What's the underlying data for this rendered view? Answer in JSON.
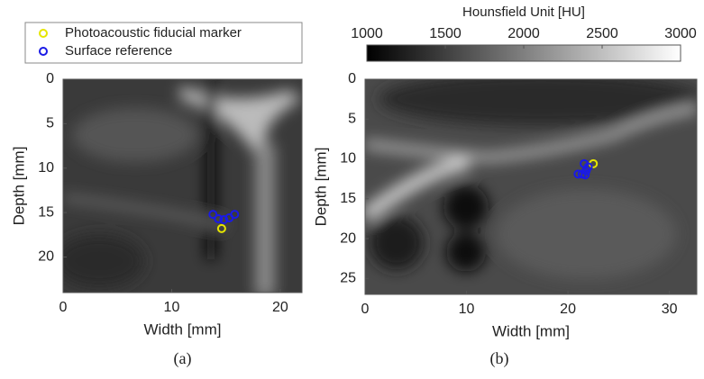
{
  "chart_data": [
    {
      "type": "scatter",
      "caption": "(a)",
      "xlabel": "Width [mm]",
      "ylabel": "Depth [mm]",
      "xlim": [
        0,
        22
      ],
      "ylim": [
        24,
        0
      ],
      "xticks": [
        0,
        10,
        20
      ],
      "yticks": [
        0,
        5,
        10,
        15,
        20
      ],
      "series": [
        {
          "name": "Photoacoustic fiducial marker",
          "color": "#e6e600",
          "x": [
            14.6
          ],
          "values": [
            16.8
          ]
        },
        {
          "name": "Surface reference",
          "color": "#1a1ae6",
          "x": [
            13.8,
            14.3,
            14.8,
            15.3,
            15.8
          ],
          "values": [
            15.2,
            15.7,
            15.8,
            15.6,
            15.2
          ]
        }
      ]
    },
    {
      "type": "scatter",
      "caption": "(b)",
      "xlabel": "Width [mm]",
      "ylabel": "Depth [mm]",
      "xlim": [
        0,
        32.7
      ],
      "ylim": [
        27,
        0
      ],
      "xticks": [
        0,
        10,
        20,
        30
      ],
      "yticks": [
        0,
        5,
        10,
        15,
        20,
        25
      ],
      "colorbar": {
        "label": "Hounsfield Unit [HU]",
        "lim": [
          1000,
          3000
        ],
        "ticks": [
          1000,
          1500,
          2000,
          2500,
          3000
        ]
      },
      "series": [
        {
          "color": "#e6e600",
          "x": [
            22.5
          ],
          "values": [
            10.6
          ]
        },
        {
          "color": "#1a1ae6",
          "x": [
            21.0,
            21.4,
            21.8,
            22.0,
            21.6,
            21.7
          ],
          "values": [
            11.9,
            11.9,
            11.5,
            11.0,
            10.6,
            12.0
          ]
        }
      ]
    }
  ]
}
